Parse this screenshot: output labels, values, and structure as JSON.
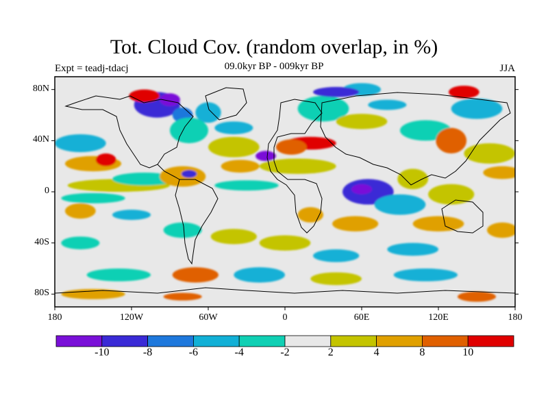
{
  "header": {
    "title": "Tot. Cloud Cov. (random overlap, in %)",
    "subtitle": "09.0kyr BP - 009kyr BP",
    "experiment": "Expt = teadj-tdacj",
    "season": "JJA"
  },
  "axes": {
    "lat_ticks": [
      {
        "label": "80N",
        "value": 80
      },
      {
        "label": "40N",
        "value": 40
      },
      {
        "label": "0",
        "value": 0
      },
      {
        "label": "40S",
        "value": -40
      },
      {
        "label": "80S",
        "value": -80
      }
    ],
    "lon_ticks": [
      {
        "label": "180",
        "value": -180
      },
      {
        "label": "120W",
        "value": -120
      },
      {
        "label": "60W",
        "value": -60
      },
      {
        "label": "0",
        "value": 0
      },
      {
        "label": "60E",
        "value": 60
      },
      {
        "label": "120E",
        "value": 120
      },
      {
        "label": "180",
        "value": 180
      }
    ],
    "lon_range": [
      -180,
      180
    ],
    "lat_range": [
      -90,
      90
    ]
  },
  "colorbar": {
    "colors": [
      "#7a10d8",
      "#3a2ad6",
      "#1e78dc",
      "#12b0d6",
      "#10d0b4",
      "#e8e8e8",
      "#c4c400",
      "#e0a000",
      "#e06000",
      "#e00000"
    ],
    "labels": [
      {
        "text": "-10",
        "value": -10
      },
      {
        "text": "-8",
        "value": -8
      },
      {
        "text": "-6",
        "value": -6
      },
      {
        "text": "-4",
        "value": -4
      },
      {
        "text": "-2",
        "value": -2
      },
      {
        "text": "2",
        "value": 2
      },
      {
        "text": "4",
        "value": 4
      },
      {
        "text": "8",
        "value": 8
      },
      {
        "text": "10",
        "value": 10
      }
    ]
  },
  "features": [
    {
      "lon": -150,
      "lat": 22,
      "rx": 22,
      "ry": 6,
      "level": 7
    },
    {
      "lon": -140,
      "lat": 25,
      "rx": 8,
      "ry": 5,
      "level": 9
    },
    {
      "lon": -160,
      "lat": 38,
      "rx": 20,
      "ry": 7,
      "level": 3
    },
    {
      "lon": -130,
      "lat": 5,
      "rx": 40,
      "ry": 5,
      "level": 6
    },
    {
      "lon": -110,
      "lat": 10,
      "rx": 25,
      "ry": 5,
      "level": 4
    },
    {
      "lon": -150,
      "lat": -5,
      "rx": 25,
      "ry": 4,
      "level": 4
    },
    {
      "lon": -120,
      "lat": -18,
      "rx": 15,
      "ry": 4,
      "level": 3
    },
    {
      "lon": -160,
      "lat": -15,
      "rx": 12,
      "ry": 6,
      "level": 7
    },
    {
      "lon": -100,
      "lat": 68,
      "rx": 18,
      "ry": 10,
      "level": 1
    },
    {
      "lon": -110,
      "lat": 75,
      "rx": 12,
      "ry": 5,
      "level": 9
    },
    {
      "lon": -90,
      "lat": 72,
      "rx": 8,
      "ry": 5,
      "level": 0
    },
    {
      "lon": -80,
      "lat": 60,
      "rx": 8,
      "ry": 6,
      "level": 2
    },
    {
      "lon": -60,
      "lat": 62,
      "rx": 10,
      "ry": 8,
      "level": 3
    },
    {
      "lon": -75,
      "lat": 48,
      "rx": 15,
      "ry": 10,
      "level": 4
    },
    {
      "lon": -80,
      "lat": 12,
      "rx": 18,
      "ry": 8,
      "level": 7
    },
    {
      "lon": -75,
      "lat": 14,
      "rx": 6,
      "ry": 3,
      "level": 1
    },
    {
      "lon": -40,
      "lat": 35,
      "rx": 20,
      "ry": 8,
      "level": 6
    },
    {
      "lon": -35,
      "lat": 20,
      "rx": 15,
      "ry": 5,
      "level": 7
    },
    {
      "lon": -30,
      "lat": 5,
      "rx": 25,
      "ry": 4,
      "level": 4
    },
    {
      "lon": -40,
      "lat": 50,
      "rx": 15,
      "ry": 5,
      "level": 3
    },
    {
      "lon": -15,
      "lat": 28,
      "rx": 8,
      "ry": 4,
      "level": 0
    },
    {
      "lon": 20,
      "lat": 38,
      "rx": 20,
      "ry": 5,
      "level": 9
    },
    {
      "lon": 5,
      "lat": 35,
      "rx": 12,
      "ry": 6,
      "level": 8
    },
    {
      "lon": 10,
      "lat": 20,
      "rx": 30,
      "ry": 6,
      "level": 6
    },
    {
      "lon": 30,
      "lat": 65,
      "rx": 20,
      "ry": 10,
      "level": 4
    },
    {
      "lon": 60,
      "lat": 80,
      "rx": 15,
      "ry": 5,
      "level": 3
    },
    {
      "lon": 40,
      "lat": 78,
      "rx": 18,
      "ry": 4,
      "level": 1
    },
    {
      "lon": 80,
      "lat": 68,
      "rx": 15,
      "ry": 4,
      "level": 3
    },
    {
      "lon": 60,
      "lat": 55,
      "rx": 20,
      "ry": 6,
      "level": 6
    },
    {
      "lon": 140,
      "lat": 78,
      "rx": 12,
      "ry": 5,
      "level": 9
    },
    {
      "lon": 150,
      "lat": 65,
      "rx": 20,
      "ry": 8,
      "level": 3
    },
    {
      "lon": 110,
      "lat": 48,
      "rx": 20,
      "ry": 8,
      "level": 4
    },
    {
      "lon": 130,
      "lat": 40,
      "rx": 12,
      "ry": 10,
      "level": 8
    },
    {
      "lon": 160,
      "lat": 30,
      "rx": 20,
      "ry": 8,
      "level": 6
    },
    {
      "lon": 170,
      "lat": 15,
      "rx": 15,
      "ry": 5,
      "level": 7
    },
    {
      "lon": 65,
      "lat": 0,
      "rx": 20,
      "ry": 10,
      "level": 1
    },
    {
      "lon": 60,
      "lat": 2,
      "rx": 8,
      "ry": 4,
      "level": 0
    },
    {
      "lon": 90,
      "lat": -10,
      "rx": 20,
      "ry": 8,
      "level": 3
    },
    {
      "lon": 100,
      "lat": 10,
      "rx": 12,
      "ry": 8,
      "level": 6
    },
    {
      "lon": 130,
      "lat": -2,
      "rx": 18,
      "ry": 8,
      "level": 6
    },
    {
      "lon": 20,
      "lat": -18,
      "rx": 10,
      "ry": 6,
      "level": 7
    },
    {
      "lon": 55,
      "lat": -25,
      "rx": 18,
      "ry": 6,
      "level": 7
    },
    {
      "lon": 120,
      "lat": -25,
      "rx": 20,
      "ry": 6,
      "level": 7
    },
    {
      "lon": 170,
      "lat": -30,
      "rx": 12,
      "ry": 6,
      "level": 7
    },
    {
      "lon": -160,
      "lat": -40,
      "rx": 15,
      "ry": 5,
      "level": 4
    },
    {
      "lon": -80,
      "lat": -30,
      "rx": 15,
      "ry": 6,
      "level": 4
    },
    {
      "lon": -40,
      "lat": -35,
      "rx": 18,
      "ry": 6,
      "level": 6
    },
    {
      "lon": 0,
      "lat": -40,
      "rx": 20,
      "ry": 6,
      "level": 6
    },
    {
      "lon": 40,
      "lat": -50,
      "rx": 18,
      "ry": 5,
      "level": 3
    },
    {
      "lon": 100,
      "lat": -45,
      "rx": 20,
      "ry": 5,
      "level": 3
    },
    {
      "lon": -130,
      "lat": -65,
      "rx": 25,
      "ry": 5,
      "level": 4
    },
    {
      "lon": -70,
      "lat": -65,
      "rx": 18,
      "ry": 6,
      "level": 8
    },
    {
      "lon": -20,
      "lat": -65,
      "rx": 20,
      "ry": 6,
      "level": 3
    },
    {
      "lon": 40,
      "lat": -68,
      "rx": 20,
      "ry": 5,
      "level": 6
    },
    {
      "lon": 110,
      "lat": -65,
      "rx": 25,
      "ry": 5,
      "level": 3
    },
    {
      "lon": -150,
      "lat": -80,
      "rx": 25,
      "ry": 4,
      "level": 7
    },
    {
      "lon": -80,
      "lat": -82,
      "rx": 15,
      "ry": 3,
      "level": 8
    },
    {
      "lon": 150,
      "lat": -82,
      "rx": 15,
      "ry": 4,
      "level": 8
    }
  ]
}
